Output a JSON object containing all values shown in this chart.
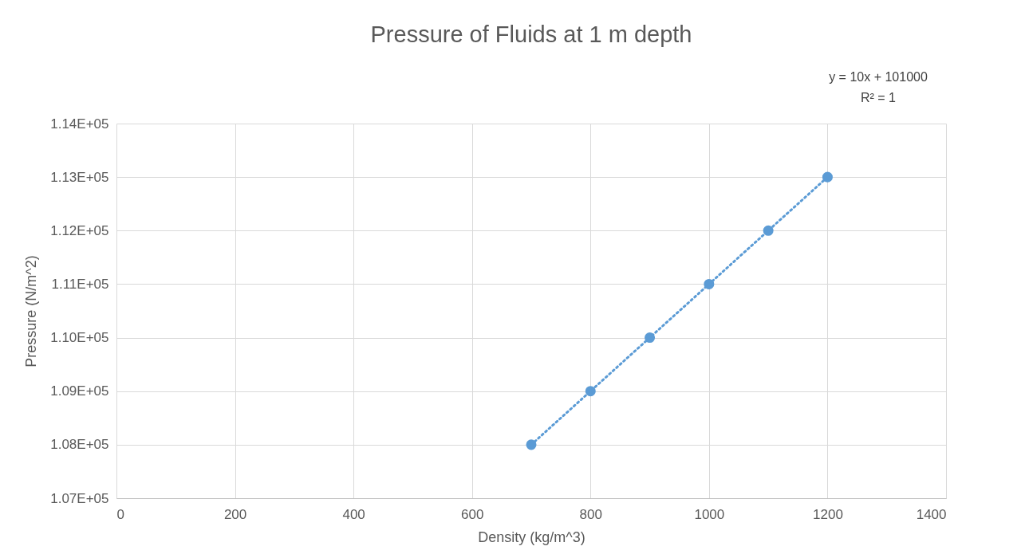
{
  "chart_data": {
    "type": "scatter",
    "title": "Pressure of Fluids at 1 m depth",
    "xlabel": "Density (kg/m^3)",
    "ylabel": "Pressure (N/m^2)",
    "annotations": [
      "y = 10x + 101000",
      "R² = 1"
    ],
    "series": [
      {
        "type": "scatter",
        "color": "#5b9bd5",
        "marker": "circle",
        "x": [
          700,
          800,
          900,
          1000,
          1100,
          1200
        ],
        "values": [
          108000,
          109000,
          110000,
          111000,
          112000,
          113000
        ]
      },
      {
        "type": "line",
        "color": "#5b9bd5",
        "line_style": "dotted",
        "x": [
          700,
          1200
        ],
        "values": [
          108000,
          113000
        ]
      }
    ],
    "grid": true,
    "xlim": [
      0,
      1400
    ],
    "xticks": [
      0,
      200,
      400,
      600,
      800,
      1000,
      1200,
      1400
    ],
    "ylim": [
      107000,
      114000
    ],
    "yticks": [
      {
        "value": 107000,
        "label": "1.07E+05"
      },
      {
        "value": 108000,
        "label": "1.08E+05"
      },
      {
        "value": 109000,
        "label": "1.09E+05"
      },
      {
        "value": 110000,
        "label": "1.10E+05"
      },
      {
        "value": 111000,
        "label": "1.11E+05"
      },
      {
        "value": 112000,
        "label": "1.12E+05"
      },
      {
        "value": 113000,
        "label": "1.13E+05"
      },
      {
        "value": 114000,
        "label": "1.14E+05"
      }
    ]
  }
}
